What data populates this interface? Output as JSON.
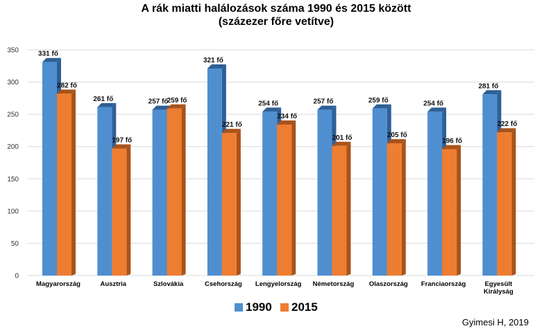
{
  "chart_data": {
    "type": "bar",
    "title": [
      "A rák miatti halálozások száma 1990 és 2015 között",
      "(százezer főre vetítve)"
    ],
    "categories": [
      [
        "Magyarország"
      ],
      [
        "Ausztria"
      ],
      [
        "Szlovákia"
      ],
      [
        "Csehország"
      ],
      [
        "Lengyelország"
      ],
      [
        "Németország"
      ],
      [
        "Olaszország"
      ],
      [
        "Franciaország"
      ],
      [
        "Egyesült",
        "Királyság"
      ]
    ],
    "series": [
      {
        "name": "1990",
        "color": "#4f8fd0",
        "side_color": "#2e5f96",
        "values": [
          331,
          261,
          257,
          321,
          254,
          257,
          259,
          254,
          281
        ],
        "labels": [
          "331 fő",
          "261 fő",
          "257 fő",
          "321 fő",
          "254 fő",
          "257 fő",
          "259 fő",
          "254 fő",
          "281 fő"
        ]
      },
      {
        "name": "2015",
        "color": "#ee7d31",
        "side_color": "#a9531a",
        "values": [
          282,
          197,
          259,
          221,
          234,
          201,
          205,
          196,
          222
        ],
        "labels": [
          "282 fő",
          "197 fő",
          "259 fő",
          "221 fő",
          "234 fő",
          "201 fő",
          "205 fő",
          "196 fő",
          "222 fő"
        ]
      }
    ],
    "ylim": [
      0,
      350
    ],
    "yticks": [
      0,
      50,
      100,
      150,
      200,
      250,
      300,
      350
    ],
    "grid": true,
    "legend": "bottom-center",
    "credit": "Gyimesi H, 2019"
  }
}
